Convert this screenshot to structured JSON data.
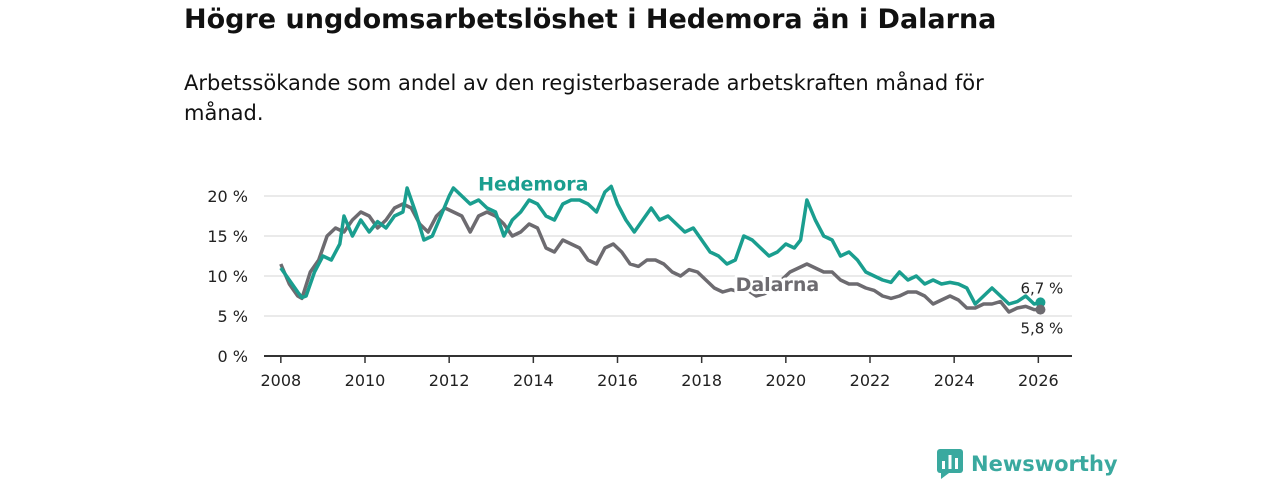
{
  "title": "Högre ungdomsarbetslöshet i Hedemora än i Dalarna",
  "subtitle": "Arbetssökande som andel av den registerbaserade arbetskraften månad för månad.",
  "brand": {
    "name": "Newsworthy",
    "icon": "bar-chart-icon",
    "color": "#3aa99f"
  },
  "chart_data": {
    "type": "line",
    "title": "Högre ungdomsarbetslöshet i Hedemora än i Dalarna",
    "xlabel": "",
    "ylabel": "",
    "xlim": [
      2007.6,
      2026.8
    ],
    "ylim": [
      0,
      20
    ],
    "x_ticks": [
      2008,
      2010,
      2012,
      2014,
      2016,
      2018,
      2020,
      2022,
      2024,
      2026
    ],
    "x_tick_labels": [
      "2008",
      "2010",
      "2012",
      "2014",
      "2016",
      "2018",
      "2020",
      "2022",
      "2024",
      "2026"
    ],
    "y_ticks": [
      0,
      5,
      10,
      15,
      20
    ],
    "y_tick_labels": [
      "0 %",
      "5 %",
      "10 %",
      "15 %",
      "20 %"
    ],
    "grid": true,
    "series": [
      {
        "name": "Hedemora",
        "color": "#1a9e8f",
        "end_label": "6,7 %",
        "points": [
          [
            2008.0,
            11.0
          ],
          [
            2008.2,
            9.5
          ],
          [
            2008.4,
            8.0
          ],
          [
            2008.5,
            7.3
          ],
          [
            2008.6,
            7.5
          ],
          [
            2008.8,
            10.5
          ],
          [
            2009.0,
            12.5
          ],
          [
            2009.2,
            12.0
          ],
          [
            2009.4,
            14.0
          ],
          [
            2009.5,
            17.5
          ],
          [
            2009.7,
            15.0
          ],
          [
            2009.9,
            17.0
          ],
          [
            2010.1,
            15.5
          ],
          [
            2010.3,
            16.8
          ],
          [
            2010.5,
            16.0
          ],
          [
            2010.7,
            17.5
          ],
          [
            2010.9,
            18.0
          ],
          [
            2011.0,
            21.0
          ],
          [
            2011.2,
            18.0
          ],
          [
            2011.4,
            14.5
          ],
          [
            2011.6,
            15.0
          ],
          [
            2011.8,
            17.5
          ],
          [
            2012.0,
            20.0
          ],
          [
            2012.1,
            21.0
          ],
          [
            2012.3,
            20.0
          ],
          [
            2012.5,
            19.0
          ],
          [
            2012.7,
            19.5
          ],
          [
            2012.9,
            18.5
          ],
          [
            2013.1,
            18.0
          ],
          [
            2013.3,
            15.0
          ],
          [
            2013.5,
            17.0
          ],
          [
            2013.7,
            18.0
          ],
          [
            2013.9,
            19.5
          ],
          [
            2014.1,
            19.0
          ],
          [
            2014.3,
            17.5
          ],
          [
            2014.5,
            17.0
          ],
          [
            2014.7,
            19.0
          ],
          [
            2014.9,
            19.5
          ],
          [
            2015.1,
            19.5
          ],
          [
            2015.3,
            19.0
          ],
          [
            2015.5,
            18.0
          ],
          [
            2015.7,
            20.5
          ],
          [
            2015.85,
            21.2
          ],
          [
            2016.0,
            19.0
          ],
          [
            2016.2,
            17.0
          ],
          [
            2016.4,
            15.5
          ],
          [
            2016.6,
            17.0
          ],
          [
            2016.8,
            18.5
          ],
          [
            2017.0,
            17.0
          ],
          [
            2017.2,
            17.5
          ],
          [
            2017.4,
            16.5
          ],
          [
            2017.6,
            15.5
          ],
          [
            2017.8,
            16.0
          ],
          [
            2018.0,
            14.5
          ],
          [
            2018.2,
            13.0
          ],
          [
            2018.4,
            12.5
          ],
          [
            2018.6,
            11.5
          ],
          [
            2018.8,
            12.0
          ],
          [
            2019.0,
            15.0
          ],
          [
            2019.2,
            14.5
          ],
          [
            2019.4,
            13.5
          ],
          [
            2019.6,
            12.5
          ],
          [
            2019.8,
            13.0
          ],
          [
            2020.0,
            14.0
          ],
          [
            2020.2,
            13.5
          ],
          [
            2020.35,
            14.5
          ],
          [
            2020.5,
            19.5
          ],
          [
            2020.7,
            17.0
          ],
          [
            2020.9,
            15.0
          ],
          [
            2021.1,
            14.5
          ],
          [
            2021.3,
            12.5
          ],
          [
            2021.5,
            13.0
          ],
          [
            2021.7,
            12.0
          ],
          [
            2021.9,
            10.5
          ],
          [
            2022.1,
            10.0
          ],
          [
            2022.3,
            9.5
          ],
          [
            2022.5,
            9.2
          ],
          [
            2022.7,
            10.5
          ],
          [
            2022.9,
            9.5
          ],
          [
            2023.1,
            10.0
          ],
          [
            2023.3,
            9.0
          ],
          [
            2023.5,
            9.5
          ],
          [
            2023.7,
            9.0
          ],
          [
            2023.9,
            9.2
          ],
          [
            2024.1,
            9.0
          ],
          [
            2024.3,
            8.5
          ],
          [
            2024.5,
            6.5
          ],
          [
            2024.7,
            7.5
          ],
          [
            2024.9,
            8.5
          ],
          [
            2025.1,
            7.5
          ],
          [
            2025.3,
            6.5
          ],
          [
            2025.5,
            6.8
          ],
          [
            2025.7,
            7.5
          ],
          [
            2025.9,
            6.5
          ],
          [
            2026.05,
            6.7
          ]
        ]
      },
      {
        "name": "Dalarna",
        "color": "#6d6b70",
        "end_label": "5,8 %",
        "points": [
          [
            2008.0,
            11.5
          ],
          [
            2008.2,
            9.0
          ],
          [
            2008.4,
            7.5
          ],
          [
            2008.5,
            7.2
          ],
          [
            2008.7,
            10.5
          ],
          [
            2008.9,
            12.0
          ],
          [
            2009.1,
            15.0
          ],
          [
            2009.3,
            16.0
          ],
          [
            2009.5,
            15.5
          ],
          [
            2009.7,
            17.0
          ],
          [
            2009.9,
            18.0
          ],
          [
            2010.1,
            17.5
          ],
          [
            2010.3,
            16.0
          ],
          [
            2010.5,
            17.0
          ],
          [
            2010.7,
            18.5
          ],
          [
            2010.9,
            19.0
          ],
          [
            2011.1,
            18.5
          ],
          [
            2011.3,
            16.5
          ],
          [
            2011.5,
            15.5
          ],
          [
            2011.7,
            17.5
          ],
          [
            2011.9,
            18.5
          ],
          [
            2012.1,
            18.0
          ],
          [
            2012.3,
            17.5
          ],
          [
            2012.5,
            15.5
          ],
          [
            2012.7,
            17.5
          ],
          [
            2012.9,
            18.0
          ],
          [
            2013.1,
            17.5
          ],
          [
            2013.3,
            16.5
          ],
          [
            2013.5,
            15.0
          ],
          [
            2013.7,
            15.5
          ],
          [
            2013.9,
            16.5
          ],
          [
            2014.1,
            16.0
          ],
          [
            2014.3,
            13.5
          ],
          [
            2014.5,
            13.0
          ],
          [
            2014.7,
            14.5
          ],
          [
            2014.9,
            14.0
          ],
          [
            2015.1,
            13.5
          ],
          [
            2015.3,
            12.0
          ],
          [
            2015.5,
            11.5
          ],
          [
            2015.7,
            13.5
          ],
          [
            2015.9,
            14.0
          ],
          [
            2016.1,
            13.0
          ],
          [
            2016.3,
            11.5
          ],
          [
            2016.5,
            11.2
          ],
          [
            2016.7,
            12.0
          ],
          [
            2016.9,
            12.0
          ],
          [
            2017.1,
            11.5
          ],
          [
            2017.3,
            10.5
          ],
          [
            2017.5,
            10.0
          ],
          [
            2017.7,
            10.8
          ],
          [
            2017.9,
            10.5
          ],
          [
            2018.1,
            9.5
          ],
          [
            2018.3,
            8.5
          ],
          [
            2018.5,
            8.0
          ],
          [
            2018.7,
            8.3
          ],
          [
            2018.9,
            8.0
          ],
          [
            2019.1,
            8.2
          ],
          [
            2019.3,
            7.5
          ],
          [
            2019.5,
            7.8
          ],
          [
            2019.7,
            8.5
          ],
          [
            2019.9,
            9.5
          ],
          [
            2020.1,
            10.5
          ],
          [
            2020.3,
            11.0
          ],
          [
            2020.5,
            11.5
          ],
          [
            2020.7,
            11.0
          ],
          [
            2020.9,
            10.5
          ],
          [
            2021.1,
            10.5
          ],
          [
            2021.3,
            9.5
          ],
          [
            2021.5,
            9.0
          ],
          [
            2021.7,
            9.0
          ],
          [
            2021.9,
            8.5
          ],
          [
            2022.1,
            8.2
          ],
          [
            2022.3,
            7.5
          ],
          [
            2022.5,
            7.2
          ],
          [
            2022.7,
            7.5
          ],
          [
            2022.9,
            8.0
          ],
          [
            2023.1,
            8.0
          ],
          [
            2023.3,
            7.5
          ],
          [
            2023.5,
            6.5
          ],
          [
            2023.7,
            7.0
          ],
          [
            2023.9,
            7.5
          ],
          [
            2024.1,
            7.0
          ],
          [
            2024.3,
            6.0
          ],
          [
            2024.5,
            6.0
          ],
          [
            2024.7,
            6.5
          ],
          [
            2024.9,
            6.5
          ],
          [
            2025.1,
            6.8
          ],
          [
            2025.3,
            5.5
          ],
          [
            2025.5,
            6.0
          ],
          [
            2025.7,
            6.2
          ],
          [
            2025.9,
            5.8
          ],
          [
            2026.05,
            5.8
          ]
        ]
      }
    ]
  }
}
